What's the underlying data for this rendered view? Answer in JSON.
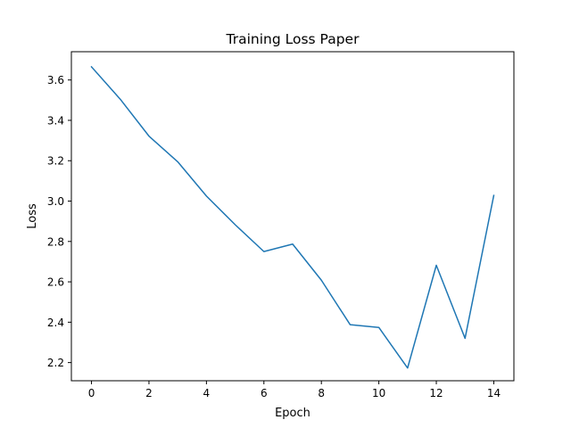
{
  "chart_data": {
    "type": "line",
    "title": "Training Loss Paper",
    "xlabel": "Epoch",
    "ylabel": "Loss",
    "x": [
      0,
      1,
      2,
      3,
      4,
      5,
      6,
      7,
      8,
      9,
      10,
      11,
      12,
      13,
      14
    ],
    "series": [
      {
        "values": [
          3.665,
          3.505,
          3.322,
          3.195,
          3.025,
          2.883,
          2.75,
          2.787,
          2.608,
          2.388,
          2.374,
          2.173,
          2.682,
          2.32,
          3.028
        ],
        "color": "#1f77b4"
      }
    ],
    "xlim": [
      -0.7,
      14.7
    ],
    "ylim": [
      2.11,
      3.74
    ],
    "xticks": [
      0,
      2,
      4,
      6,
      8,
      10,
      12,
      14
    ],
    "xtick_labels": [
      "0",
      "2",
      "4",
      "6",
      "8",
      "10",
      "12",
      "14"
    ],
    "yticks": [
      2.2,
      2.4,
      2.6,
      2.8,
      3.0,
      3.2,
      3.4,
      3.6
    ],
    "ytick_labels": [
      "2.2",
      "2.4",
      "2.6",
      "2.8",
      "3.0",
      "3.2",
      "3.4",
      "3.6"
    ],
    "grid": false,
    "legend": "none"
  }
}
